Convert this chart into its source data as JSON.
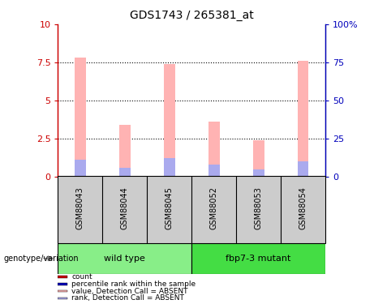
{
  "title": "GDS1743 / 265381_at",
  "samples": [
    "GSM88043",
    "GSM88044",
    "GSM88045",
    "GSM88052",
    "GSM88053",
    "GSM88054"
  ],
  "pink_values": [
    7.8,
    3.4,
    7.4,
    3.6,
    2.4,
    7.6
  ],
  "blue_values": [
    1.1,
    0.55,
    1.2,
    0.75,
    0.45,
    1.0
  ],
  "ylim_left": [
    0,
    10
  ],
  "ylim_right": [
    0,
    100
  ],
  "yticks_left": [
    0,
    2.5,
    5.0,
    7.5,
    10
  ],
  "ytick_labels_left": [
    "0",
    "2.5",
    "5",
    "7.5",
    "10"
  ],
  "yticks_right": [
    0,
    25,
    50,
    75,
    100
  ],
  "ytick_labels_right": [
    "0",
    "25",
    "50",
    "75",
    "100%"
  ],
  "grid_lines": [
    2.5,
    5.0,
    7.5
  ],
  "bar_width": 0.25,
  "pink_color": "#ffb3b3",
  "blue_color": "#aaaaee",
  "red_color": "#cc0000",
  "dark_blue_color": "#0000bb",
  "plot_bg": "#ffffff",
  "group_row_color": "#cccccc",
  "wild_type_color": "#88ee88",
  "mutant_color": "#44dd44",
  "legend_items": [
    {
      "color": "#cc0000",
      "label": "count"
    },
    {
      "color": "#0000bb",
      "label": "percentile rank within the sample"
    },
    {
      "color": "#ffb3b3",
      "label": "value, Detection Call = ABSENT"
    },
    {
      "color": "#aaaaee",
      "label": "rank, Detection Call = ABSENT"
    }
  ],
  "genotype_label": "genotype/variation"
}
